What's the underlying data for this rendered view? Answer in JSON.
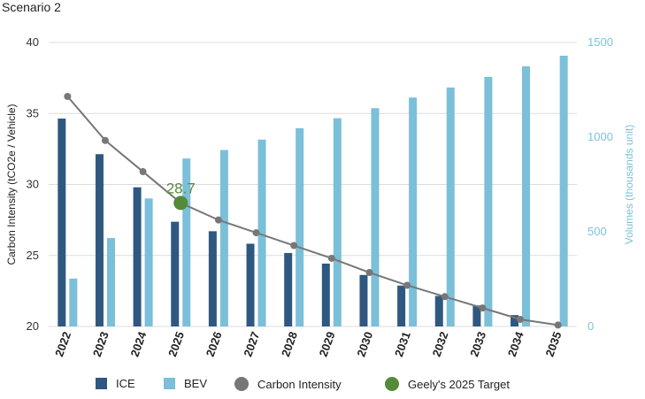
{
  "chart_data": {
    "type": "bar",
    "title": "Scenario 2",
    "categories": [
      "2022",
      "2023",
      "2024",
      "2025",
      "2026",
      "2027",
      "2028",
      "2029",
      "2030",
      "2031",
      "2032",
      "2033",
      "2034",
      "2035"
    ],
    "series": [
      {
        "name": "ICE",
        "kind": "bar",
        "axis": "right",
        "color": "#2f5880",
        "values": [
          1098,
          910,
          735,
          553,
          503,
          437,
          388,
          332,
          272,
          216,
          161,
          111,
          60,
          0
        ]
      },
      {
        "name": "BEV",
        "kind": "bar",
        "axis": "right",
        "color": "#7bbfd9",
        "values": [
          253,
          467,
          676,
          887,
          932,
          987,
          1047,
          1100,
          1153,
          1209,
          1262,
          1318,
          1374,
          1430
        ]
      },
      {
        "name": "Carbon Intensity",
        "kind": "line",
        "axis": "left",
        "color": "#777777",
        "values": [
          36.2,
          33.1,
          30.9,
          28.7,
          27.5,
          26.6,
          25.7,
          24.8,
          23.8,
          22.9,
          22.1,
          21.3,
          20.5,
          20.1
        ]
      }
    ],
    "target": {
      "name": "Geely's 2025 Target",
      "category": "2025",
      "value": 28.7,
      "label": "28.7",
      "color": "#548a3a"
    },
    "ylabel": "Carbon Intensity (tCO2e / Vehicle)",
    "ylim": [
      20,
      40
    ],
    "yticks": [
      20,
      25,
      30,
      35,
      40
    ],
    "y2label": "Volumes (thousands unit)",
    "y2lim": [
      0,
      1500
    ],
    "y2ticks": [
      0,
      500,
      1000,
      1500
    ],
    "grid": true,
    "legend_position": "bottom",
    "legend": [
      "ICE",
      "BEV",
      "Carbon Intensity",
      "Geely's 2025 Target"
    ]
  }
}
